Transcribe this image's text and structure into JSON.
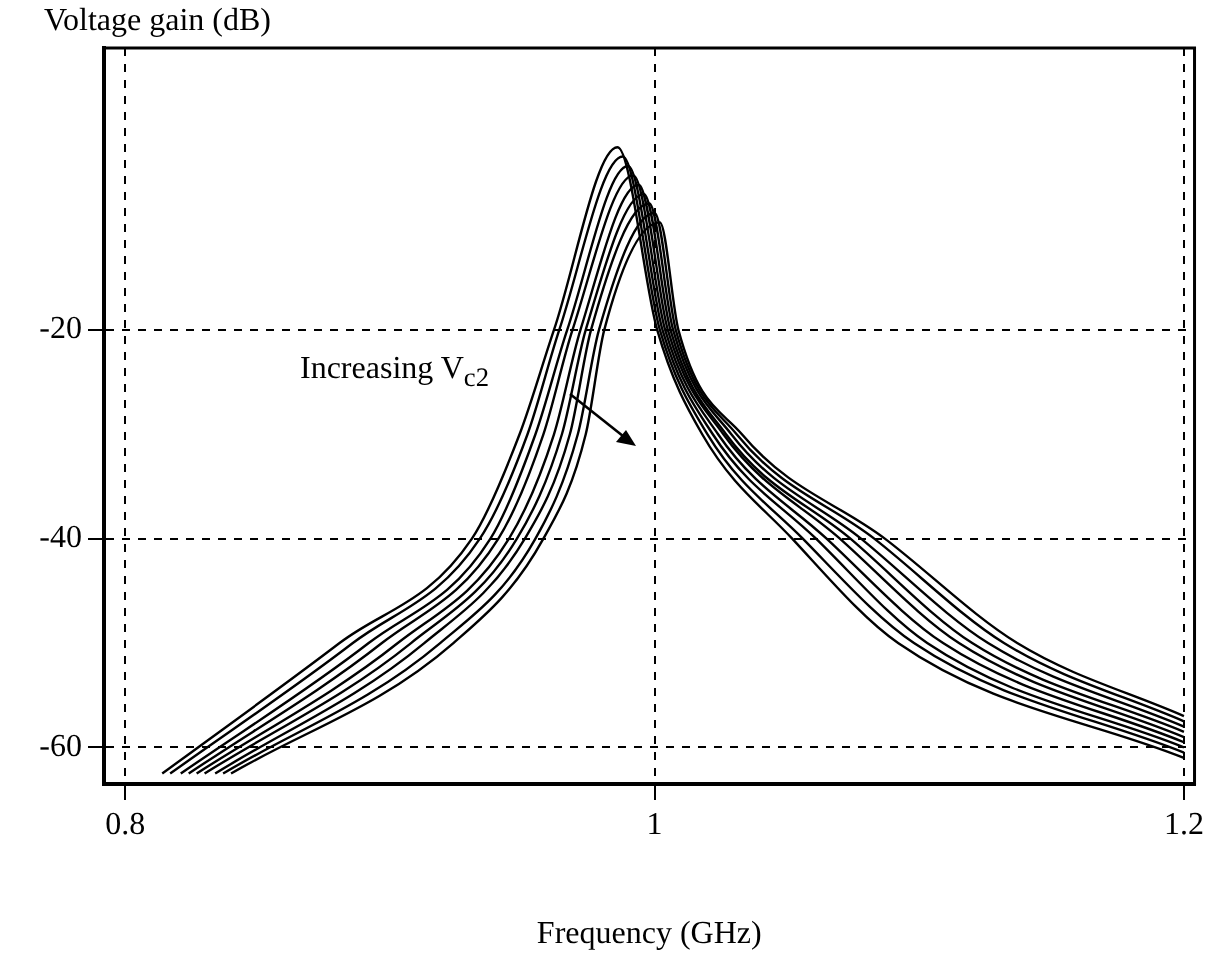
{
  "chart_data": {
    "type": "line",
    "xlabel": "Frequency (GHz)",
    "ylabel": "Voltage gain (dB)",
    "xlim": [
      0.792,
      1.204
    ],
    "xticks": [
      0.8,
      1,
      1.2
    ],
    "ylim": [
      -63.5,
      7
    ],
    "yticks": [
      -60,
      -40,
      -20
    ],
    "grid": true,
    "legend": false,
    "marker": "none",
    "line_style": "solid",
    "annotations": [
      "Increasing V$_{c2}$"
    ],
    "series": [
      {
        "color": "#000000",
        "x": [
          0.814,
          0.881,
          0.931,
          0.949,
          0.962,
          0.986,
          1.001,
          1.018,
          1.052,
          1.092,
          1.2
        ],
        "values": [
          -62.5,
          -50,
          -40,
          -30,
          -20,
          -2.5,
          -20,
          -30,
          -40,
          -50,
          -61
        ]
      },
      {
        "color": "#000000",
        "x": [
          0.817,
          0.886,
          0.934,
          0.952,
          0.964,
          0.988,
          1.002,
          1.02,
          1.056,
          1.098,
          1.2
        ],
        "values": [
          -62.5,
          -50,
          -40,
          -30,
          -20,
          -3.4,
          -20,
          -30,
          -40,
          -50,
          -60.5
        ]
      },
      {
        "color": "#000000",
        "x": [
          0.821,
          0.892,
          0.938,
          0.955,
          0.967,
          0.99,
          1.003,
          1.022,
          1.061,
          1.103,
          1.2
        ],
        "values": [
          -62.5,
          -50,
          -40,
          -30,
          -20,
          -4.3,
          -20,
          -30,
          -40,
          -50,
          -60
        ]
      },
      {
        "color": "#000000",
        "x": [
          0.824,
          0.897,
          0.941,
          0.958,
          0.969,
          0.992,
          1.004,
          1.024,
          1.065,
          1.109,
          1.2
        ],
        "values": [
          -62.5,
          -50,
          -40,
          -30,
          -20,
          -5.2,
          -20,
          -30,
          -40,
          -50,
          -59.5
        ]
      },
      {
        "color": "#000000",
        "x": [
          0.827,
          0.903,
          0.945,
          0.962,
          0.972,
          0.994,
          1.005,
          1.026,
          1.07,
          1.115,
          1.2
        ],
        "values": [
          -62.5,
          -50,
          -40,
          -30,
          -20,
          -6.1,
          -20,
          -30,
          -40,
          -50,
          -59
        ]
      },
      {
        "color": "#000000",
        "x": [
          0.83,
          0.908,
          0.948,
          0.965,
          0.974,
          0.996,
          1.006,
          1.027,
          1.074,
          1.12,
          1.2
        ],
        "values": [
          -62.5,
          -50,
          -40,
          -30,
          -20,
          -7,
          -20,
          -30,
          -40,
          -50,
          -58.5
        ]
      },
      {
        "color": "#000000",
        "x": [
          0.834,
          0.913,
          0.951,
          0.968,
          0.976,
          0.998,
          1.007,
          1.029,
          1.078,
          1.126,
          1.2
        ],
        "values": [
          -62.5,
          -50,
          -40,
          -30,
          -20,
          -7.9,
          -20,
          -30,
          -40,
          -50,
          -58
        ]
      },
      {
        "color": "#000000",
        "x": [
          0.837,
          0.919,
          0.955,
          0.971,
          0.979,
          1.0,
          1.008,
          1.031,
          1.083,
          1.132,
          1.2
        ],
        "values": [
          -62.5,
          -50,
          -40,
          -30,
          -20,
          -8.8,
          -20,
          -30,
          -40,
          -50,
          -57.5
        ]
      },
      {
        "color": "#000000",
        "x": [
          0.84,
          0.924,
          0.958,
          0.974,
          0.981,
          1.002,
          1.009,
          1.033,
          1.087,
          1.137,
          1.2
        ],
        "values": [
          -62.5,
          -50,
          -40,
          -30,
          -20,
          -9.7,
          -20,
          -30,
          -40,
          -50,
          -57
        ]
      }
    ]
  }
}
